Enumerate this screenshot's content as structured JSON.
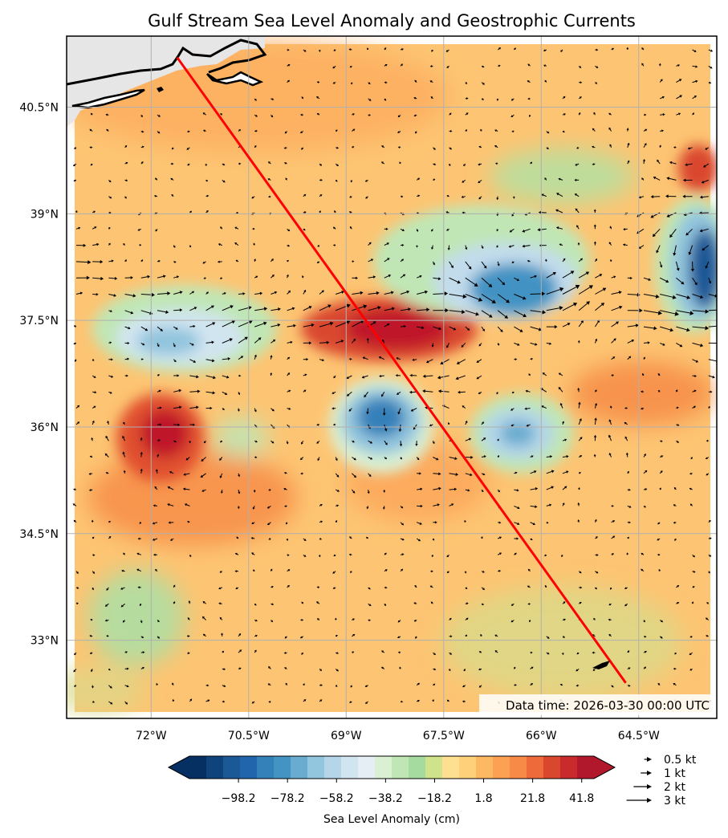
{
  "title": "Gulf Stream Sea Level Anomaly and Geostrophic Currents",
  "data_time": "Data time: 2026-03-30 00:00 UTC",
  "map": {
    "lon_range": [
      -73.3,
      -63.3
    ],
    "lat_range": [
      31.9,
      41.5
    ],
    "x_ticks": [
      {
        "value": -72,
        "label": "72°W"
      },
      {
        "value": -70.5,
        "label": "70.5°W"
      },
      {
        "value": -69,
        "label": "69°W"
      },
      {
        "value": -67.5,
        "label": "67.5°W"
      },
      {
        "value": -66,
        "label": "66°W"
      },
      {
        "value": -64.5,
        "label": "64.5°W"
      }
    ],
    "y_ticks": [
      {
        "value": 40.5,
        "label": "40.5°N"
      },
      {
        "value": 39,
        "label": "39°N"
      },
      {
        "value": 37.5,
        "label": "37.5°N"
      },
      {
        "value": 36,
        "label": "36°N"
      },
      {
        "value": 34.5,
        "label": "34.5°N"
      },
      {
        "value": 33,
        "label": "33°N"
      }
    ],
    "grid": true,
    "track_line": {
      "color": "#ff0000",
      "start": {
        "lon": -71.6,
        "lat": 41.2
      },
      "end": {
        "lon": -64.7,
        "lat": 32.4
      }
    },
    "colors": {
      "land": "#e6e6e6",
      "coast": "#000000",
      "track": "#ff0000"
    }
  },
  "colorbar": {
    "label": "Sea Level Anomaly (cm)",
    "tick_labels": [
      "−98.2",
      "−78.2",
      "−58.2",
      "−38.2",
      "−18.2",
      "1.8",
      "21.8",
      "41.8"
    ],
    "tick_values": [
      -98.2,
      -78.2,
      -58.2,
      -38.2,
      -18.2,
      1.8,
      21.8,
      41.8
    ],
    "range": [
      -118.2,
      46.8
    ],
    "extend": "both",
    "colors": [
      "#053061",
      "#0f437b",
      "#1b5996",
      "#2166ac",
      "#3480b9",
      "#4393c3",
      "#6aacd0",
      "#92c5de",
      "#b4d6e8",
      "#d1e5f0",
      "#e4eef4",
      "#d9f0d3",
      "#c0e6b5",
      "#a6dba0",
      "#cfe38a",
      "#fee090",
      "#fdd079",
      "#fdb863",
      "#fca054",
      "#f68a46",
      "#ee6a3a",
      "#d9472e",
      "#c92a2c",
      "#b2182b"
    ]
  },
  "quiver_key": [
    {
      "label": "0.5 kt",
      "value": 0.5
    },
    {
      "label": "1 kt",
      "value": 1
    },
    {
      "label": "2 kt",
      "value": 2
    },
    {
      "label": "3 kt",
      "value": 3
    }
  ],
  "anomaly_features": [
    {
      "type": "high",
      "lon": -67.8,
      "lat": 37.4,
      "value": 38
    },
    {
      "type": "high",
      "lon": -71.5,
      "lat": 35.9,
      "value": 40
    },
    {
      "type": "high",
      "lon": -63.5,
      "lat": 39.9,
      "value": 36
    },
    {
      "type": "low",
      "lon": -67.7,
      "lat": 36.1,
      "value": -60
    },
    {
      "type": "low",
      "lon": -66,
      "lat": 35.9,
      "value": -45
    },
    {
      "type": "low",
      "lon": -66.1,
      "lat": 38.0,
      "value": -65
    },
    {
      "type": "low",
      "lon": -63.2,
      "lat": 38.3,
      "value": -98
    },
    {
      "type": "low",
      "lon": -71.3,
      "lat": 37.2,
      "value": -35
    },
    {
      "type": "low",
      "lon": -71.9,
      "lat": 33,
      "value": -15
    }
  ]
}
